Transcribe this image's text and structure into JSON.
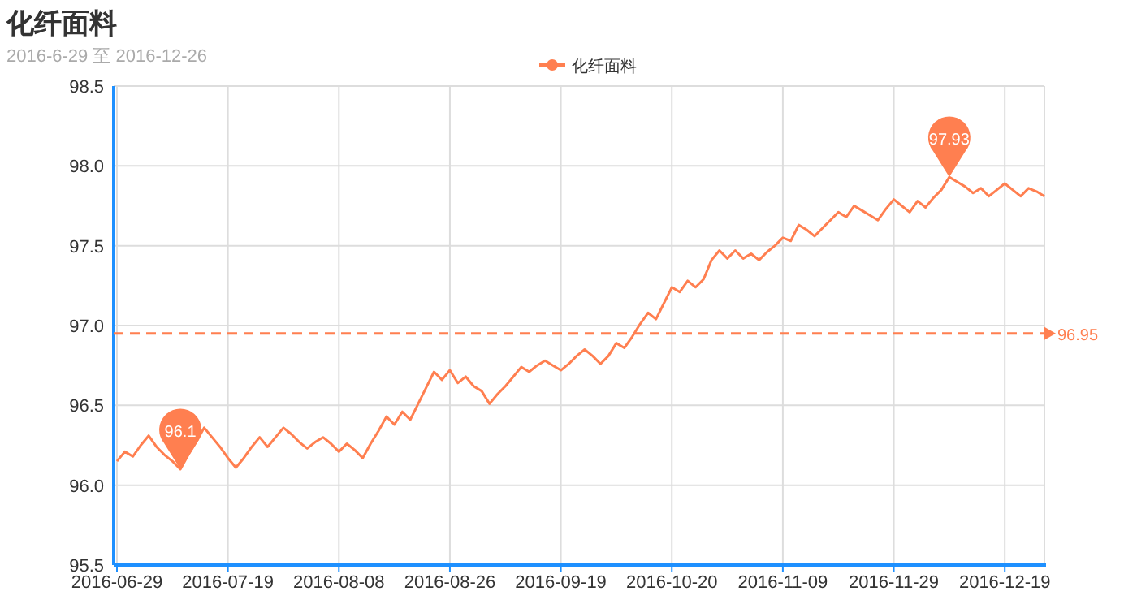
{
  "chart_data": {
    "type": "line",
    "title": "化纤面料",
    "subtitle": "2016-6-29 至 2016-12-26",
    "categories": [
      "2016-06-29",
      null,
      null,
      null,
      null,
      null,
      null,
      null,
      null,
      null,
      null,
      null,
      null,
      null,
      "2016-07-19",
      null,
      null,
      null,
      null,
      null,
      null,
      null,
      null,
      null,
      null,
      null,
      null,
      null,
      "2016-08-08",
      null,
      null,
      null,
      null,
      null,
      null,
      null,
      null,
      null,
      null,
      null,
      null,
      null,
      "2016-08-26",
      null,
      null,
      null,
      null,
      null,
      null,
      null,
      null,
      null,
      null,
      null,
      null,
      null,
      "2016-09-19",
      null,
      null,
      null,
      null,
      null,
      null,
      null,
      null,
      null,
      null,
      null,
      null,
      null,
      "2016-10-20",
      null,
      null,
      null,
      null,
      null,
      null,
      null,
      null,
      null,
      null,
      null,
      null,
      null,
      "2016-11-09",
      null,
      null,
      null,
      null,
      null,
      null,
      null,
      null,
      null,
      null,
      null,
      null,
      null,
      "2016-11-29",
      null,
      null,
      null,
      null,
      null,
      null,
      null,
      null,
      null,
      null,
      null,
      null,
      null,
      "2016-12-19",
      null,
      null,
      null,
      null,
      null
    ],
    "series": [
      {
        "name": "化纤面料",
        "color": "#ff7f50",
        "values": [
          96.15,
          96.21,
          96.18,
          96.25,
          96.31,
          96.24,
          96.19,
          96.15,
          96.1,
          96.19,
          96.27,
          96.36,
          96.3,
          96.24,
          96.17,
          96.11,
          96.17,
          96.24,
          96.3,
          96.24,
          96.3,
          96.36,
          96.32,
          96.27,
          96.23,
          96.27,
          96.3,
          96.26,
          96.21,
          96.26,
          96.22,
          96.17,
          96.26,
          96.34,
          96.43,
          96.38,
          96.46,
          96.41,
          96.51,
          96.61,
          96.71,
          96.66,
          96.72,
          96.64,
          96.68,
          96.62,
          96.59,
          96.51,
          96.57,
          96.62,
          96.68,
          96.74,
          96.71,
          96.75,
          96.78,
          96.75,
          96.72,
          96.76,
          96.81,
          96.85,
          96.81,
          96.76,
          96.81,
          96.89,
          96.86,
          96.93,
          97.01,
          97.08,
          97.04,
          97.14,
          97.24,
          97.21,
          97.28,
          97.24,
          97.29,
          97.41,
          97.47,
          97.42,
          97.47,
          97.42,
          97.45,
          97.41,
          97.46,
          97.5,
          97.55,
          97.53,
          97.63,
          97.6,
          97.56,
          97.61,
          97.66,
          97.71,
          97.68,
          97.75,
          97.72,
          97.69,
          97.66,
          97.73,
          97.79,
          97.75,
          97.71,
          97.78,
          97.74,
          97.8,
          97.85,
          97.93,
          97.9,
          97.87,
          97.83,
          97.86,
          97.81,
          97.85,
          97.89,
          97.85,
          97.81,
          97.86,
          97.84,
          97.81
        ]
      }
    ],
    "ylim": [
      95.5,
      98.5
    ],
    "yticks": [
      95.5,
      {
        "value": 96,
        "label": "96.0"
      },
      96.5,
      {
        "value": 97,
        "label": "97.0"
      },
      97.5,
      {
        "value": 98,
        "label": "98.0"
      },
      98.5
    ],
    "ref_lines": [
      {
        "axis": "y",
        "value": 96.95,
        "label": "96.95",
        "color": "#ff7f50",
        "line_style": "dashed"
      }
    ],
    "annotations": [
      {
        "text": "96.1",
        "y": 96.1
      },
      {
        "text": "97.93",
        "y": 97.93
      }
    ],
    "grid": true,
    "legend": "top",
    "marker": "none",
    "line_style": "solid"
  }
}
